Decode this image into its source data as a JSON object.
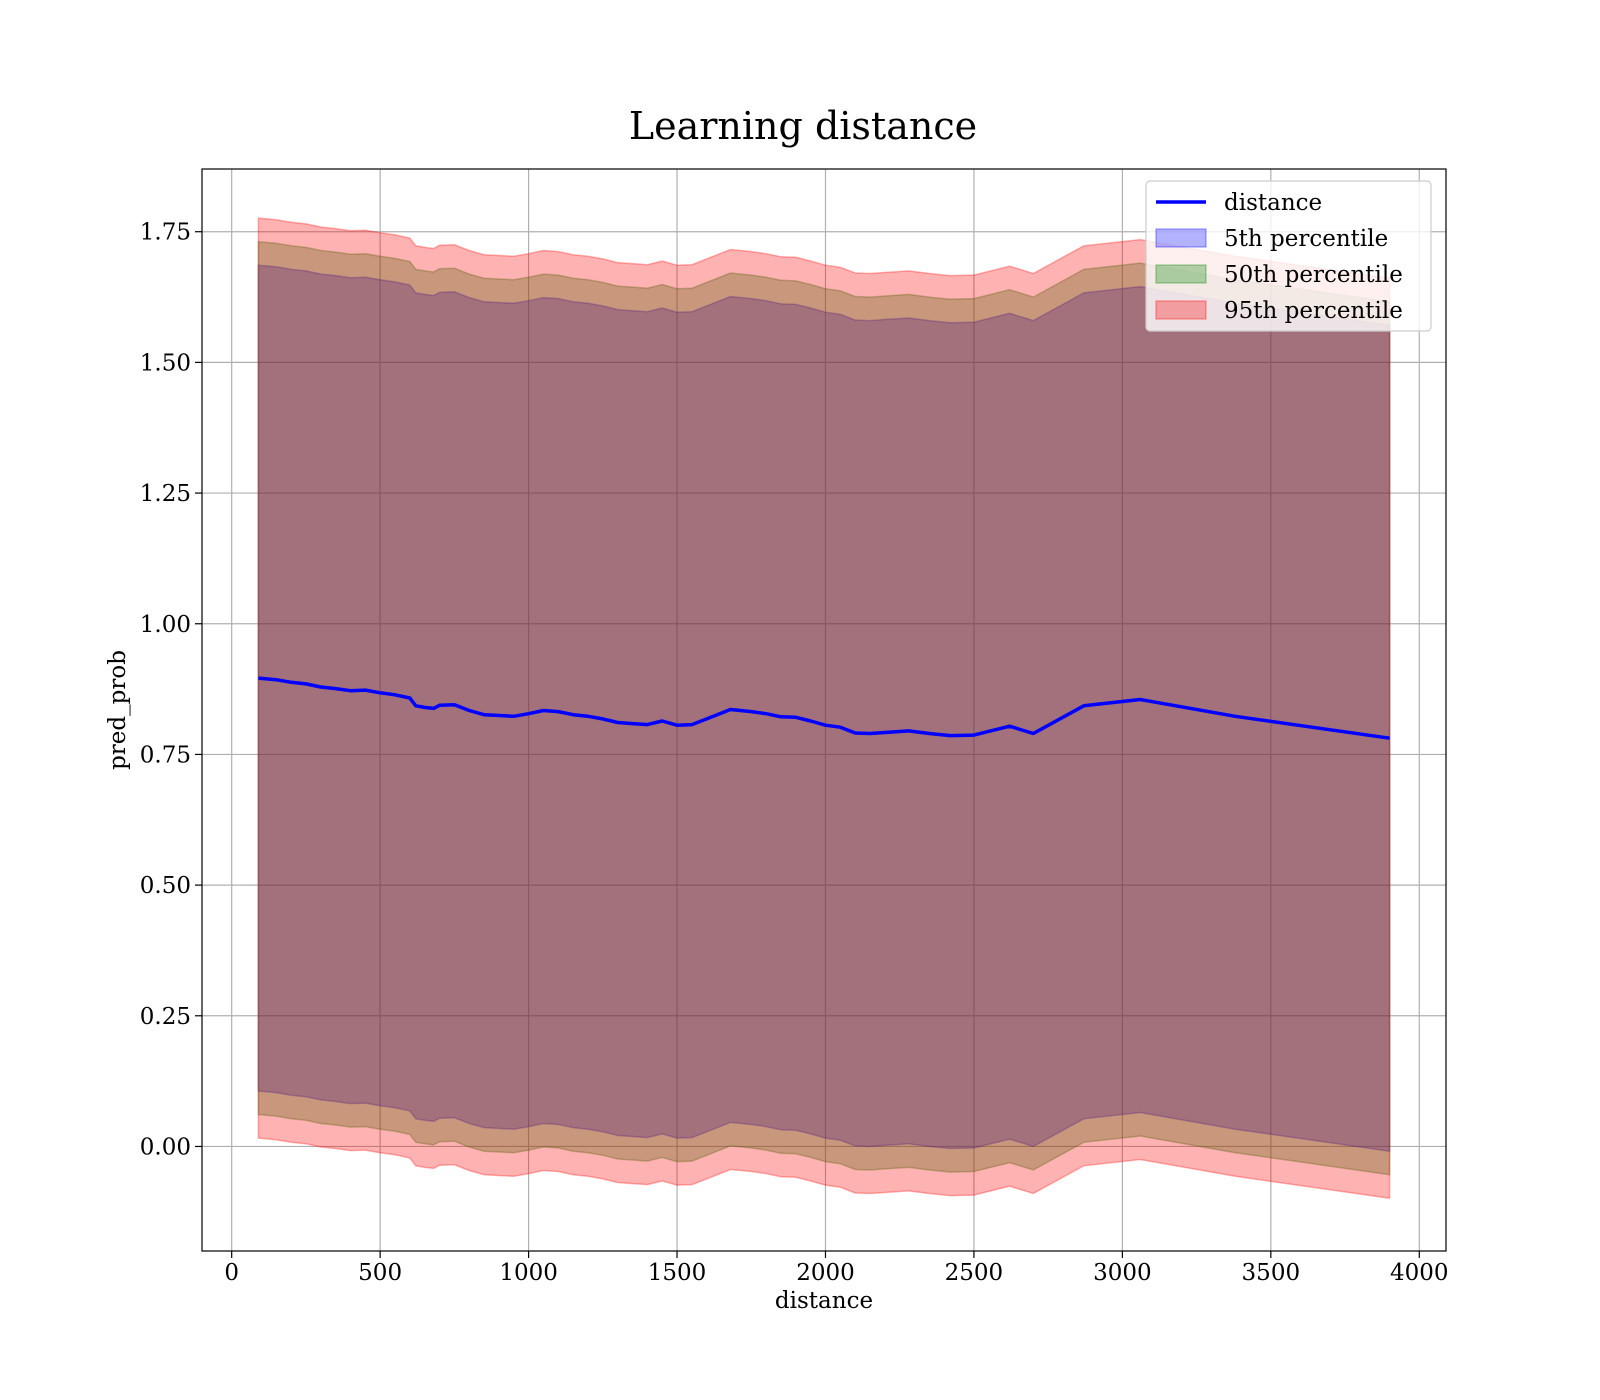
{
  "chart_data": {
    "type": "area",
    "title": "Learning distance",
    "xlabel": "distance",
    "ylabel": "pred_prob",
    "xlim": [
      -100,
      4090
    ],
    "ylim": [
      -0.2,
      1.87
    ],
    "xticks": [
      0,
      500,
      1000,
      1500,
      2000,
      2500,
      3000,
      3500,
      4000
    ],
    "xtick_labels": [
      "0",
      "500",
      "1000",
      "1500",
      "2000",
      "2500",
      "3000",
      "3500",
      "4000"
    ],
    "yticks": [
      0.0,
      0.25,
      0.5,
      0.75,
      1.0,
      1.25,
      1.5,
      1.75
    ],
    "ytick_labels": [
      "0.00",
      "0.25",
      "0.50",
      "0.75",
      "1.00",
      "1.25",
      "1.50",
      "1.75"
    ],
    "grid": true,
    "legend_position": "top-right",
    "x": [
      90,
      150,
      200,
      250,
      300,
      350,
      400,
      450,
      500,
      550,
      600,
      620,
      650,
      680,
      700,
      750,
      800,
      850,
      950,
      1000,
      1050,
      1100,
      1150,
      1200,
      1250,
      1300,
      1350,
      1400,
      1450,
      1500,
      1550,
      1600,
      1680,
      1750,
      1800,
      1850,
      1900,
      1950,
      2000,
      2050,
      2100,
      2150,
      2200,
      2280,
      2350,
      2420,
      2500,
      2620,
      2700,
      2870,
      3060,
      3380,
      3900
    ],
    "series": [
      {
        "name": "distance",
        "kind": "line",
        "color": "#0000ff",
        "values": [
          0.896,
          0.893,
          0.888,
          0.885,
          0.879,
          0.876,
          0.872,
          0.873,
          0.868,
          0.864,
          0.858,
          0.843,
          0.84,
          0.838,
          0.844,
          0.845,
          0.834,
          0.826,
          0.823,
          0.828,
          0.834,
          0.832,
          0.826,
          0.823,
          0.818,
          0.811,
          0.809,
          0.807,
          0.814,
          0.806,
          0.807,
          0.818,
          0.836,
          0.832,
          0.828,
          0.822,
          0.821,
          0.814,
          0.806,
          0.802,
          0.791,
          0.79,
          0.792,
          0.795,
          0.79,
          0.786,
          0.787,
          0.804,
          0.79,
          0.843,
          0.855,
          0.823,
          0.781
        ]
      },
      {
        "name": "5th percentile",
        "kind": "band",
        "color": "#0000ff",
        "lower": [
          0.106,
          0.103,
          0.098,
          0.095,
          0.089,
          0.086,
          0.082,
          0.083,
          0.078,
          0.074,
          0.068,
          0.053,
          0.05,
          0.048,
          0.054,
          0.055,
          0.044,
          0.036,
          0.033,
          0.038,
          0.044,
          0.042,
          0.036,
          0.033,
          0.028,
          0.021,
          0.019,
          0.017,
          0.024,
          0.016,
          0.017,
          0.028,
          0.046,
          0.042,
          0.038,
          0.032,
          0.031,
          0.024,
          0.016,
          0.012,
          0.001,
          0.0,
          0.002,
          0.005,
          0.0,
          -0.004,
          -0.003,
          0.014,
          0.0,
          0.053,
          0.065,
          0.033,
          -0.009
        ],
        "upper": [
          1.686,
          1.683,
          1.678,
          1.675,
          1.669,
          1.666,
          1.662,
          1.663,
          1.658,
          1.654,
          1.648,
          1.633,
          1.63,
          1.628,
          1.634,
          1.635,
          1.624,
          1.616,
          1.613,
          1.618,
          1.624,
          1.622,
          1.616,
          1.613,
          1.608,
          1.601,
          1.599,
          1.597,
          1.604,
          1.596,
          1.597,
          1.608,
          1.626,
          1.622,
          1.618,
          1.612,
          1.611,
          1.604,
          1.596,
          1.592,
          1.581,
          1.58,
          1.582,
          1.585,
          1.58,
          1.576,
          1.577,
          1.594,
          1.58,
          1.633,
          1.645,
          1.613,
          1.571
        ]
      },
      {
        "name": "50th percentile",
        "kind": "band",
        "color": "#008000",
        "lower": [
          0.061,
          0.058,
          0.053,
          0.05,
          0.044,
          0.041,
          0.037,
          0.038,
          0.033,
          0.029,
          0.023,
          0.008,
          0.005,
          0.003,
          0.009,
          0.01,
          -0.001,
          -0.009,
          -0.012,
          -0.007,
          -0.001,
          -0.003,
          -0.009,
          -0.012,
          -0.017,
          -0.024,
          -0.026,
          -0.028,
          -0.021,
          -0.029,
          -0.028,
          -0.017,
          0.001,
          -0.003,
          -0.007,
          -0.013,
          -0.014,
          -0.021,
          -0.029,
          -0.033,
          -0.044,
          -0.045,
          -0.043,
          -0.04,
          -0.045,
          -0.049,
          -0.048,
          -0.031,
          -0.045,
          0.008,
          0.02,
          -0.012,
          -0.054
        ],
        "upper": [
          1.731,
          1.728,
          1.723,
          1.72,
          1.714,
          1.711,
          1.707,
          1.708,
          1.703,
          1.699,
          1.693,
          1.678,
          1.675,
          1.673,
          1.679,
          1.68,
          1.669,
          1.661,
          1.658,
          1.663,
          1.669,
          1.667,
          1.661,
          1.658,
          1.653,
          1.646,
          1.644,
          1.642,
          1.649,
          1.641,
          1.642,
          1.653,
          1.671,
          1.667,
          1.663,
          1.657,
          1.656,
          1.649,
          1.641,
          1.637,
          1.626,
          1.625,
          1.627,
          1.63,
          1.625,
          1.621,
          1.622,
          1.639,
          1.625,
          1.678,
          1.69,
          1.658,
          1.616
        ]
      },
      {
        "name": "95th percentile",
        "kind": "band",
        "color": "#ff0000",
        "lower": [
          0.016,
          0.013,
          0.008,
          0.005,
          -0.001,
          -0.004,
          -0.008,
          -0.007,
          -0.012,
          -0.016,
          -0.022,
          -0.037,
          -0.04,
          -0.042,
          -0.036,
          -0.035,
          -0.046,
          -0.054,
          -0.057,
          -0.052,
          -0.046,
          -0.048,
          -0.054,
          -0.057,
          -0.062,
          -0.069,
          -0.071,
          -0.073,
          -0.066,
          -0.074,
          -0.073,
          -0.062,
          -0.044,
          -0.048,
          -0.052,
          -0.058,
          -0.059,
          -0.066,
          -0.074,
          -0.078,
          -0.089,
          -0.09,
          -0.088,
          -0.085,
          -0.09,
          -0.094,
          -0.093,
          -0.076,
          -0.09,
          -0.037,
          -0.025,
          -0.057,
          -0.099
        ],
        "upper": [
          1.776,
          1.773,
          1.768,
          1.765,
          1.759,
          1.756,
          1.752,
          1.753,
          1.748,
          1.744,
          1.738,
          1.723,
          1.72,
          1.718,
          1.724,
          1.725,
          1.714,
          1.706,
          1.703,
          1.708,
          1.714,
          1.712,
          1.706,
          1.703,
          1.698,
          1.691,
          1.689,
          1.687,
          1.694,
          1.686,
          1.687,
          1.698,
          1.716,
          1.712,
          1.708,
          1.702,
          1.701,
          1.694,
          1.686,
          1.682,
          1.671,
          1.67,
          1.672,
          1.675,
          1.67,
          1.666,
          1.667,
          1.684,
          1.67,
          1.723,
          1.735,
          1.703,
          1.661
        ]
      }
    ]
  }
}
